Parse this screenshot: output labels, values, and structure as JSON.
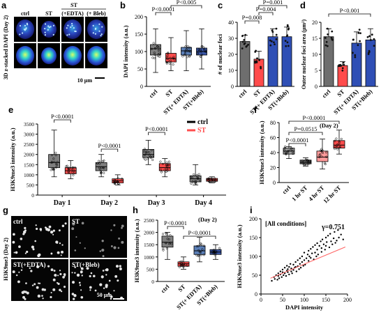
{
  "colors": {
    "ctrl": "#7f7f7f",
    "st": "#ff4d4d",
    "edta": "#5b7fb7",
    "bleb": "#3a57a8",
    "fit": "#ff6060",
    "bar_ctrl": "#6e6e6e",
    "bar_st": "#ff4b4b",
    "bar_edta": "#2f4fb5",
    "bar_bleb": "#2f4fb5"
  },
  "figure": {
    "panels": [
      {
        "letter": "a",
        "type": "image",
        "title": "3D z-stacked DAPI (Day 2)",
        "column_labels": [
          "ctrl",
          "ST",
          "(+EDTA)",
          "(+ Bleb)"
        ],
        "group_label": "ST",
        "scale_bar": "10 μm"
      },
      {
        "letter": "b",
        "chart_data": {
          "type": "box",
          "ylabel": "DAPI intensity (a.u.)",
          "ylim": [
            0,
            200
          ],
          "yticks": [
            0,
            50,
            100,
            150,
            200
          ],
          "categories": [
            "ctrl",
            "ST",
            "ST(+ EDTA)",
            "ST(+Bleb)"
          ],
          "boxes": [
            {
              "min": 40,
              "q1": 90,
              "median": 108,
              "q3": 120,
              "max": 165
            },
            {
              "min": 45,
              "q1": 70,
              "median": 80,
              "q3": 95,
              "max": 140
            },
            {
              "min": 45,
              "q1": 90,
              "median": 102,
              "q3": 112,
              "max": 160
            },
            {
              "min": 50,
              "q1": 90,
              "median": 100,
              "q3": 110,
              "max": 165
            }
          ],
          "annotations": [
            "P<0.0001",
            "P<0.005"
          ]
        }
      },
      {
        "letter": "c",
        "chart_data": {
          "type": "bar",
          "ylabel": "# of nuclear foci",
          "ylim": [
            0,
            40
          ],
          "yticks": [
            0,
            10,
            20,
            30,
            40
          ],
          "categories": [
            "ctrl",
            "ST",
            "ST(+ EDTA)",
            "ST(+Bleb)"
          ],
          "values": [
            28,
            17,
            31,
            31
          ],
          "errors": [
            4,
            5,
            5,
            6
          ],
          "annotations": [
            "P=0.008",
            "P=0.004",
            "P=0.001"
          ]
        }
      },
      {
        "letter": "d",
        "chart_data": {
          "type": "bar",
          "ylabel": "Outer nuclear foci area (μm²)",
          "ylim": [
            0,
            20
          ],
          "yticks": [
            0,
            5,
            10,
            15,
            20
          ],
          "categories": [
            "ctrl",
            "ST",
            "ST(+ EDTA)",
            "ST(+Bleb)"
          ],
          "values": [
            15.5,
            6.5,
            13.5,
            14.5
          ],
          "errors": [
            2.5,
            1.2,
            3.5,
            3.5
          ],
          "annotations": [
            "P<0.001"
          ]
        }
      },
      {
        "letter": "e",
        "chart_data": {
          "type": "box",
          "ylabel": "H3K9me3 intensity (a.u.)",
          "ylim": [
            0,
            3500
          ],
          "yticks": [
            0,
            500,
            1000,
            1500,
            2000,
            2500,
            3000,
            3500
          ],
          "categories": [
            "Day 1",
            "Day 2",
            "Day 3",
            "Day 4"
          ],
          "series": [
            {
              "name": "ctrl",
              "boxes": [
                {
                  "min": 900,
                  "q1": 1350,
                  "median": 1600,
                  "q3": 2000,
                  "max": 3200
                },
                {
                  "min": 900,
                  "q1": 1200,
                  "median": 1400,
                  "q3": 1600,
                  "max": 2000
                },
                {
                  "min": 1500,
                  "q1": 1850,
                  "median": 2000,
                  "q3": 2250,
                  "max": 2700
                },
                {
                  "min": 500,
                  "q1": 650,
                  "median": 800,
                  "q3": 950,
                  "max": 1500
                }
              ]
            },
            {
              "name": "ST",
              "boxes": [
                {
                  "min": 800,
                  "q1": 1050,
                  "median": 1200,
                  "q3": 1350,
                  "max": 1700
                },
                {
                  "min": 500,
                  "q1": 600,
                  "median": 700,
                  "q3": 800,
                  "max": 1000
                },
                {
                  "min": 900,
                  "q1": 1200,
                  "median": 1350,
                  "q3": 1550,
                  "max": 1800
                },
                {
                  "min": 600,
                  "q1": 680,
                  "median": 750,
                  "q3": 820,
                  "max": 900
                }
              ]
            }
          ],
          "annotations": [
            "P<0.0001",
            "P<0.0001",
            "P<0.0001"
          ]
        }
      },
      {
        "letter": "f",
        "chart_data": {
          "type": "box",
          "title": "(Day 2)",
          "ylabel": "H3K9me3 intensity (a.u.)",
          "ylim": [
            0,
            80
          ],
          "yticks": [
            0,
            20,
            40,
            60,
            80
          ],
          "categories": [
            "ctrl",
            "1 hr ST",
            "4 hr ST",
            "12 hr ST"
          ],
          "boxes": [
            {
              "min": 32,
              "q1": 38,
              "median": 42,
              "q3": 46,
              "max": 48
            },
            {
              "min": 22,
              "q1": 25,
              "median": 27,
              "q3": 30,
              "max": 33
            },
            {
              "min": 18,
              "q1": 28,
              "median": 34,
              "q3": 42,
              "max": 58
            },
            {
              "min": 38,
              "q1": 46,
              "median": 50,
              "q3": 56,
              "max": 70
            }
          ],
          "annotations": [
            "P<0.0001",
            "P=0.0515",
            "P<0.0001"
          ]
        }
      },
      {
        "letter": "g",
        "type": "image",
        "ylabel": "H3K9me3 (Day 2)",
        "cell_labels": [
          "ctrl",
          "ST",
          "ST(+EDTA)",
          "ST(+Bleb)"
        ],
        "scale_bar": "50 μm"
      },
      {
        "letter": "h",
        "chart_data": {
          "type": "box",
          "title": "(Day 2)",
          "ylabel": "H3K9me3 intensity (a.u.)",
          "ylim": [
            0,
            2500
          ],
          "yticks": [
            0,
            500,
            1000,
            1500,
            2000,
            2500
          ],
          "categories": [
            "ctrl",
            "ST",
            "ST(+ EDTA)",
            "ST(+Bleb)"
          ],
          "boxes": [
            {
              "min": 900,
              "q1": 1400,
              "median": 1600,
              "q3": 1850,
              "max": 2000
            },
            {
              "min": 500,
              "q1": 620,
              "median": 720,
              "q3": 800,
              "max": 1000
            },
            {
              "min": 800,
              "q1": 1100,
              "median": 1250,
              "q3": 1450,
              "max": 1800
            },
            {
              "min": 900,
              "q1": 1100,
              "median": 1200,
              "q3": 1300,
              "max": 1500
            }
          ],
          "annotations": [
            "P<0.0001",
            "P<0.0001"
          ]
        }
      },
      {
        "letter": "i",
        "chart_data": {
          "type": "scatter",
          "title": "[All conditions]",
          "annotation": "γ=0.751",
          "xlabel": "DAPI intensity",
          "ylabel": "H3K9me3 intensity (a.u.)",
          "xlim": [
            0,
            200
          ],
          "ylim": [
            0,
            200
          ],
          "xticks": [
            0,
            50,
            100,
            150,
            200
          ],
          "yticks": [
            0,
            50,
            100,
            150,
            200
          ],
          "fit": {
            "x": [
              22,
              195
            ],
            "y": [
              42,
              125
            ]
          },
          "x": [
            25,
            30,
            32,
            35,
            38,
            40,
            40,
            42,
            45,
            45,
            48,
            50,
            50,
            52,
            55,
            55,
            58,
            60,
            60,
            62,
            62,
            65,
            65,
            68,
            70,
            70,
            72,
            75,
            75,
            78,
            80,
            80,
            82,
            85,
            85,
            88,
            90,
            90,
            92,
            95,
            95,
            98,
            100,
            100,
            102,
            105,
            108,
            110,
            110,
            112,
            115,
            115,
            118,
            120,
            122,
            125,
            125,
            128,
            130,
            130,
            132,
            135,
            138,
            140,
            140,
            142,
            145,
            148,
            150,
            150,
            152,
            155,
            158,
            160,
            162,
            165,
            168,
            170,
            172,
            175,
            178,
            180,
            185,
            190
          ],
          "y": [
            35,
            45,
            40,
            50,
            38,
            55,
            48,
            42,
            60,
            52,
            45,
            65,
            58,
            50,
            70,
            55,
            48,
            62,
            75,
            58,
            66,
            52,
            72,
            80,
            60,
            68,
            55,
            78,
            64,
            70,
            85,
            72,
            60,
            90,
            74,
            66,
            95,
            80,
            70,
            100,
            85,
            75,
            110,
            90,
            78,
            95,
            105,
            115,
            88,
            100,
            120,
            96,
            108,
            125,
            92,
            130,
            110,
            100,
            118,
            135,
            105,
            128,
            140,
            112,
            122,
            145,
            132,
            118,
            150,
            128,
            138,
            155,
            124,
            160,
            140,
            132,
            148,
            165,
            136,
            142,
            170,
            150,
            158,
            145
          ]
        }
      }
    ]
  }
}
